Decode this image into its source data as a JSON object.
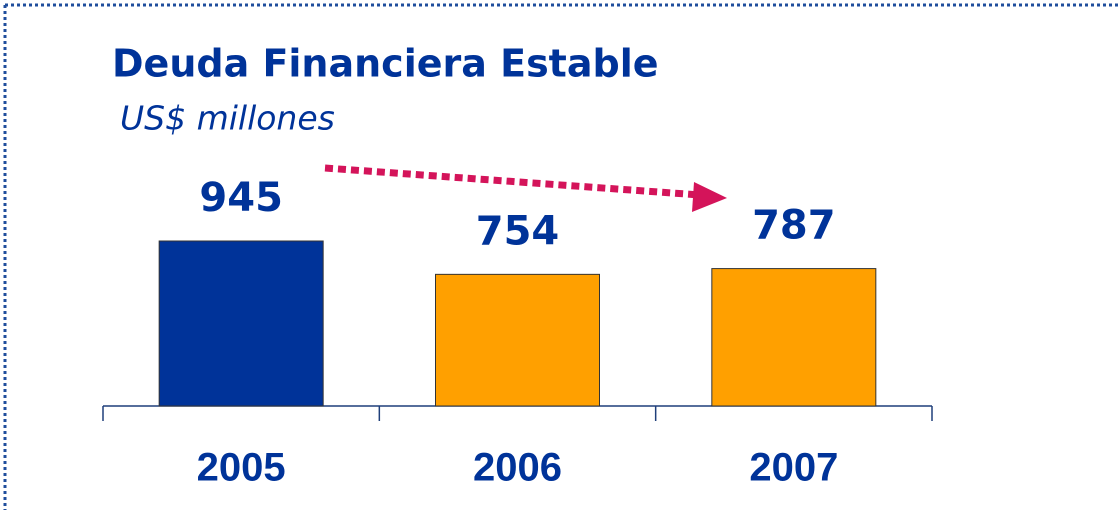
{
  "chart_data": {
    "type": "bar",
    "title": "Deuda Financiera Estable",
    "subtitle": "US$ millones",
    "categories": [
      "2005",
      "2006",
      "2007"
    ],
    "values": [
      945,
      754,
      787
    ],
    "colors": [
      "#003399",
      "#ffa000",
      "#ffa000"
    ]
  }
}
